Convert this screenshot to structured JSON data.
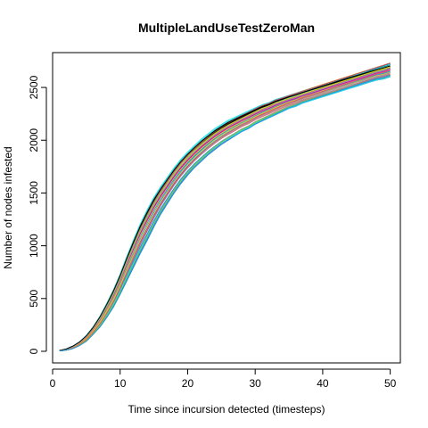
{
  "chart_data": {
    "type": "line",
    "title": "MultipleLandUseTestZeroMan",
    "xlabel": "Time since incursion detected (timesteps)",
    "ylabel": "Number of nodes infested",
    "xlim": [
      0,
      51.5
    ],
    "ylim": [
      -110,
      2830
    ],
    "xticks": [
      0,
      10,
      20,
      30,
      40,
      50
    ],
    "yticks": [
      0,
      500,
      1000,
      1500,
      2000,
      2500
    ],
    "grid": false,
    "legend": "none",
    "series_count": 60,
    "x": [
      1,
      2,
      3,
      4,
      5,
      6,
      7,
      8,
      9,
      10,
      11,
      12,
      13,
      14,
      15,
      16,
      17,
      18,
      19,
      20,
      21,
      22,
      23,
      24,
      25,
      26,
      27,
      28,
      29,
      30,
      31,
      32,
      33,
      34,
      35,
      36,
      37,
      38,
      39,
      40,
      41,
      42,
      43,
      44,
      45,
      46,
      47,
      48,
      49,
      50
    ],
    "mean_series": [
      5,
      15,
      35,
      70,
      120,
      190,
      270,
      370,
      480,
      610,
      760,
      920,
      1070,
      1220,
      1350,
      1470,
      1570,
      1660,
      1740,
      1810,
      1880,
      1940,
      1990,
      2040,
      2080,
      2120,
      2160,
      2190,
      2220,
      2250,
      2280,
      2300,
      2330,
      2350,
      2370,
      2390,
      2410,
      2430,
      2450,
      2470,
      2490,
      2510,
      2530,
      2550,
      2570,
      2590,
      2610,
      2630,
      2650,
      2670
    ],
    "spread": {
      "low": [
        3,
        10,
        25,
        55,
        95,
        160,
        230,
        320,
        420,
        540,
        670,
        800,
        930,
        1050,
        1180,
        1300,
        1400,
        1500,
        1590,
        1670,
        1740,
        1800,
        1860,
        1910,
        1960,
        2000,
        2040,
        2080,
        2110,
        2150,
        2180,
        2210,
        2240,
        2270,
        2300,
        2320,
        2350,
        2370,
        2390,
        2410,
        2430,
        2450,
        2470,
        2490,
        2510,
        2530,
        2550,
        2570,
        2580,
        2600
      ],
      "high": [
        8,
        22,
        50,
        90,
        150,
        230,
        330,
        450,
        580,
        730,
        900,
        1060,
        1210,
        1340,
        1460,
        1560,
        1650,
        1740,
        1820,
        1890,
        1950,
        2010,
        2060,
        2110,
        2150,
        2190,
        2220,
        2250,
        2280,
        2310,
        2340,
        2360,
        2390,
        2410,
        2430,
        2450,
        2470,
        2490,
        2510,
        2530,
        2550,
        2570,
        2590,
        2610,
        2630,
        2650,
        2670,
        2690,
        2710,
        2730
      ]
    },
    "series_colors": [
      "#000000",
      "#DF536B",
      "#61D04F",
      "#2297E6",
      "#28E2E5",
      "#CD0BBC",
      "#F5C710",
      "#9E9E9E"
    ]
  }
}
